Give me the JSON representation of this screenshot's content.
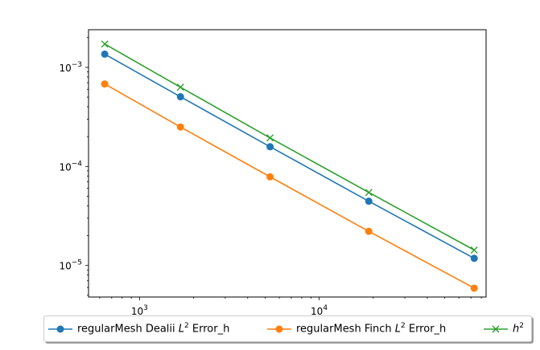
{
  "chart_data": {
    "type": "line",
    "xscale": "log",
    "yscale": "log",
    "xlim": [
      520,
      85000
    ],
    "ylim": [
      4.8e-06,
      0.0024
    ],
    "x_ticks": [
      {
        "value": 1000,
        "base": "10",
        "exp": "3"
      },
      {
        "value": 10000,
        "base": "10",
        "exp": "4"
      }
    ],
    "y_ticks": [
      {
        "value": 1e-05,
        "base": "10",
        "exp": "−5"
      },
      {
        "value": 0.0001,
        "base": "10",
        "exp": "−4"
      },
      {
        "value": 0.001,
        "base": "10",
        "exp": "−3"
      }
    ],
    "grid": false,
    "legend_placement": "below",
    "series": [
      {
        "name_prefix": "regularMesh Dealii ",
        "name_math": "L",
        "name_sup": "2",
        "name_suffix": " Error_h",
        "color": "#1f77b4",
        "marker": "circle",
        "x": [
          640,
          1690,
          5330,
          18900,
          73000
        ],
        "y": [
          0.00136,
          0.000505,
          0.000158,
          4.45e-05,
          1.18e-05
        ]
      },
      {
        "name_prefix": "regularMesh Finch ",
        "name_math": "L",
        "name_sup": "2",
        "name_suffix": " Error_h",
        "color": "#ff7f0e",
        "marker": "circle",
        "x": [
          640,
          1690,
          5330,
          18900,
          73000
        ],
        "y": [
          0.00068,
          0.00025,
          7.85e-05,
          2.21e-05,
          5.9e-06
        ]
      },
      {
        "name_prefix": "",
        "name_math": "h",
        "name_sup": "2",
        "name_suffix": "",
        "color": "#2ca02c",
        "marker": "x",
        "x": [
          640,
          1690,
          5330,
          18900,
          73000
        ],
        "y": [
          0.00172,
          0.00063,
          0.000194,
          5.46e-05,
          1.43e-05
        ]
      }
    ]
  }
}
